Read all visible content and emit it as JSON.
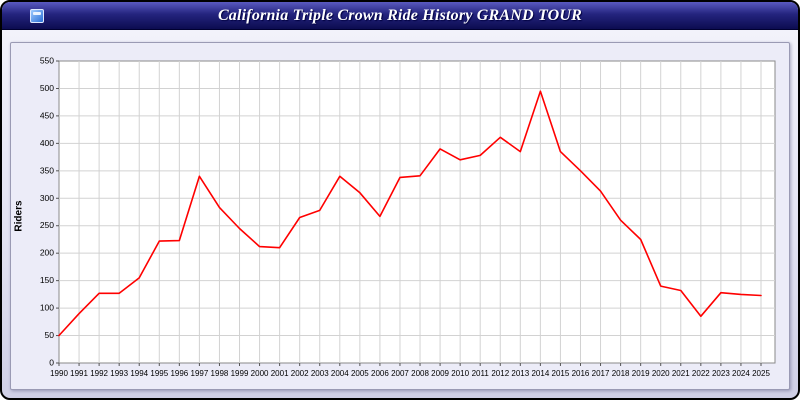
{
  "window": {
    "title": "California Triple Crown Ride History GRAND TOUR"
  },
  "colors": {
    "line": "#ff0000",
    "titlebar": "#24247e",
    "panel_background": "#ececf8",
    "plot_background": "#ffffff",
    "gridline": "#d2d2d2",
    "axis_text": "#000000"
  },
  "chart_data": {
    "type": "line",
    "title": "California Triple Crown Ride History GRAND TOUR",
    "xlabel": "",
    "ylabel": "Riders",
    "ylim": [
      0,
      550
    ],
    "y_ticks": [
      0,
      50,
      100,
      150,
      200,
      250,
      300,
      350,
      400,
      450,
      500,
      550
    ],
    "grid": true,
    "legend_position": "none",
    "x": [
      1990,
      1991,
      1992,
      1993,
      1994,
      1995,
      1996,
      1997,
      1998,
      1999,
      2000,
      2001,
      2002,
      2003,
      2004,
      2005,
      2006,
      2007,
      2008,
      2009,
      2010,
      2011,
      2012,
      2013,
      2014,
      2015,
      2016,
      2017,
      2018,
      2019,
      2020,
      2021,
      2022,
      2023,
      2024,
      2025
    ],
    "series": [
      {
        "name": "Riders",
        "color": "#ff0000",
        "values": [
          50,
          90,
          127,
          127,
          155,
          222,
          223,
          340,
          283,
          245,
          212,
          210,
          265,
          278,
          340,
          310,
          267,
          338,
          341,
          390,
          370,
          378,
          411,
          385,
          495,
          385,
          350,
          313,
          260,
          225,
          140,
          132,
          85,
          128,
          125,
          123
        ]
      }
    ]
  }
}
